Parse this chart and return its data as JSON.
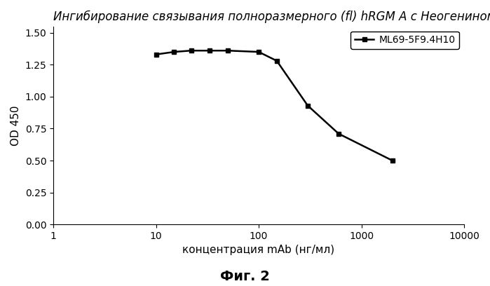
{
  "title": "Ингибирование связывания полноразмерного (fl) hRGM A с Неогенином",
  "xlabel": "концентрация mAb (нг/мл)",
  "ylabel": "OD 450",
  "caption": "Фиг. 2",
  "legend_label": "ML69-5F9.4H10",
  "x_data": [
    10,
    15,
    22,
    33,
    50,
    100,
    150,
    300,
    600,
    2000
  ],
  "y_data": [
    1.33,
    1.35,
    1.36,
    1.36,
    1.36,
    1.35,
    1.28,
    0.93,
    0.71,
    0.5
  ],
  "line_color": "#000000",
  "marker": "s",
  "marker_size": 5,
  "line_width": 1.8,
  "xlim_min": 1,
  "xlim_max": 10000,
  "ylim_min": 0.0,
  "ylim_max": 1.55,
  "yticks": [
    0.0,
    0.25,
    0.5,
    0.75,
    1.0,
    1.25,
    1.5
  ],
  "xticks": [
    1,
    10,
    100,
    1000,
    10000
  ],
  "xtick_labels": [
    "1",
    "10",
    "100",
    "1000",
    "10000"
  ],
  "title_fontsize": 12,
  "axis_label_fontsize": 11,
  "tick_fontsize": 10,
  "legend_fontsize": 10,
  "caption_fontsize": 14,
  "bg_color": "#ffffff"
}
